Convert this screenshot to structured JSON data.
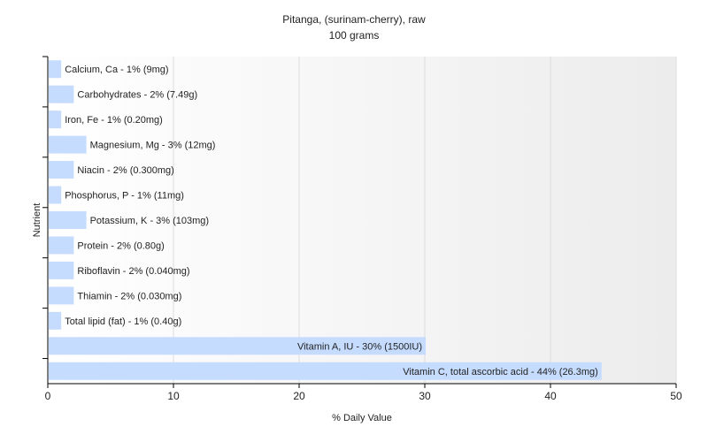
{
  "chart_data": {
    "type": "bar",
    "orientation": "horizontal",
    "title": "Pitanga, (surinam-cherry), raw",
    "subtitle": "100 grams",
    "xlabel": "% Daily Value",
    "ylabel": "Nutrient",
    "xlim": [
      0,
      50
    ],
    "xticks": [
      "0",
      "10",
      "20",
      "30",
      "40",
      "50"
    ],
    "grid": true,
    "bar_color": "#c6dcff",
    "categories": [
      "Calcium, Ca",
      "Carbohydrates",
      "Iron, Fe",
      "Magnesium, Mg",
      "Niacin",
      "Phosphorus, P",
      "Potassium, K",
      "Protein",
      "Riboflavin",
      "Thiamin",
      "Total lipid (fat)",
      "Vitamin A, IU",
      "Vitamin C, total ascorbic acid"
    ],
    "values": [
      1,
      2,
      1,
      3,
      2,
      1,
      3,
      2,
      2,
      2,
      1,
      30,
      44
    ],
    "labels": [
      "Calcium, Ca - 1% (9mg)",
      "Carbohydrates - 2% (7.49g)",
      "Iron, Fe - 1% (0.20mg)",
      "Magnesium, Mg - 3% (12mg)",
      "Niacin - 2% (0.300mg)",
      "Phosphorus, P - 1% (11mg)",
      "Potassium, K - 3% (103mg)",
      "Protein - 2% (0.80g)",
      "Riboflavin - 2% (0.040mg)",
      "Thiamin - 2% (0.030mg)",
      "Total lipid (fat) - 1% (0.40g)",
      "Vitamin A, IU - 30% (1500IU)",
      "Vitamin C, total ascorbic acid - 44% (26.3mg)"
    ]
  }
}
